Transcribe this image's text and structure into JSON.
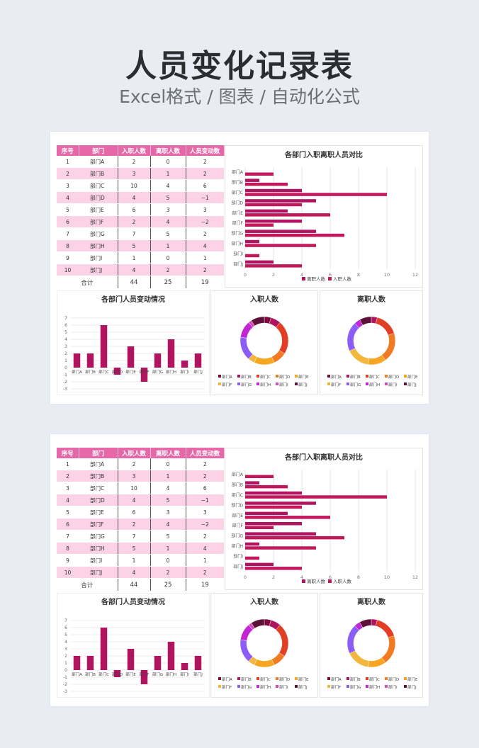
{
  "header": {
    "title": "人员变化记录表",
    "subtitle": "Excel格式 / 图表 / 自动化公式"
  },
  "table": {
    "headers": [
      "序号",
      "部门",
      "入职人数",
      "离职人数",
      "人员变动数"
    ],
    "rows": [
      {
        "no": "1",
        "dept": "部门A",
        "in": "2",
        "out": "0",
        "change": "2"
      },
      {
        "no": "2",
        "dept": "部门B",
        "in": "3",
        "out": "1",
        "change": "2"
      },
      {
        "no": "3",
        "dept": "部门C",
        "in": "10",
        "out": "4",
        "change": "6"
      },
      {
        "no": "4",
        "dept": "部门D",
        "in": "4",
        "out": "5",
        "change": "−1"
      },
      {
        "no": "5",
        "dept": "部门E",
        "in": "6",
        "out": "3",
        "change": "3"
      },
      {
        "no": "6",
        "dept": "部门F",
        "in": "2",
        "out": "4",
        "change": "−2"
      },
      {
        "no": "7",
        "dept": "部门G",
        "in": "7",
        "out": "5",
        "change": "2"
      },
      {
        "no": "8",
        "dept": "部门H",
        "in": "5",
        "out": "1",
        "change": "4"
      },
      {
        "no": "9",
        "dept": "部门I",
        "in": "1",
        "out": "0",
        "change": "1"
      },
      {
        "no": "10",
        "dept": "部门J",
        "in": "4",
        "out": "2",
        "change": "2"
      }
    ],
    "total": {
      "label": "合计",
      "in": "44",
      "out": "25",
      "change": "19"
    }
  },
  "chart_data": [
    {
      "type": "bar",
      "orientation": "horizontal",
      "title": "各部门入职离职人员对比",
      "categories": [
        "部门A",
        "部门B",
        "部门C",
        "部门D",
        "部门E",
        "部门F",
        "部门G",
        "部门H",
        "部门I",
        "部门J"
      ],
      "series": [
        {
          "name": "离职人数",
          "values": [
            0,
            1,
            4,
            5,
            3,
            4,
            5,
            1,
            0,
            2
          ]
        },
        {
          "name": "入职人数",
          "values": [
            2,
            3,
            10,
            4,
            6,
            2,
            7,
            5,
            1,
            4
          ]
        }
      ],
      "xticks": [
        "0",
        "2",
        "4",
        "6",
        "8",
        "10",
        "12"
      ],
      "xlim": [
        0,
        12
      ],
      "grid": true,
      "legend": "bottom"
    },
    {
      "type": "bar",
      "title": "各部门人员变动情况",
      "categories": [
        "部门A",
        "部门B",
        "部门C",
        "部门D",
        "部门E",
        "部门F",
        "部门G",
        "部门H",
        "部门I",
        "部门J"
      ],
      "values": [
        2,
        2,
        6,
        -1,
        3,
        -2,
        2,
        4,
        1,
        2
      ],
      "yticks": [
        "7",
        "6",
        "5",
        "4",
        "3",
        "2",
        "1",
        "0",
        "-1",
        "-2",
        "-3"
      ],
      "ylim": [
        -3,
        7
      ],
      "grid": true
    },
    {
      "type": "pie",
      "donut": true,
      "title": "入职人数",
      "labels": [
        "部门A",
        "部门B",
        "部门C",
        "部门D",
        "部门E",
        "部门F",
        "部门G",
        "部门H",
        "部门I",
        "部门J"
      ],
      "values": [
        2,
        3,
        10,
        4,
        6,
        2,
        7,
        5,
        1,
        4
      ],
      "legend": "bottom"
    },
    {
      "type": "pie",
      "donut": true,
      "title": "离职人数",
      "labels": [
        "部门A",
        "部门B",
        "部门C",
        "部门D",
        "部门E",
        "部门F",
        "部门G",
        "部门H",
        "部门I",
        "部门J"
      ],
      "values": [
        0,
        1,
        4,
        5,
        3,
        4,
        5,
        1,
        0,
        2
      ],
      "legend": "bottom"
    }
  ],
  "colors": {
    "header_pink": "#e668a8",
    "row_pink": "#fbd2e6",
    "bar_magenta": "#b0135f",
    "pie": [
      "#7a0b3c",
      "#b0135f",
      "#e23d25",
      "#f07b22",
      "#f6a623",
      "#f4b73e",
      "#8b5cf6",
      "#c026d3",
      "#d24db8",
      "#5b1138"
    ]
  }
}
